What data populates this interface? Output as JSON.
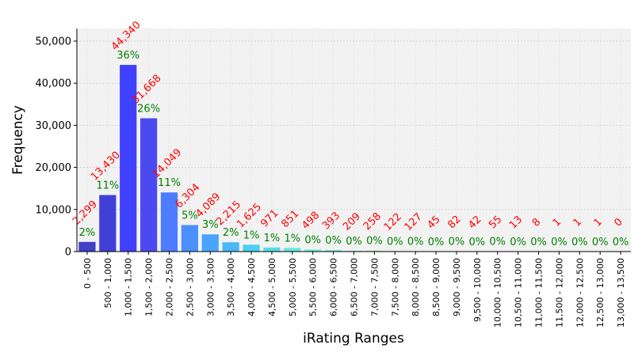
{
  "chart_data": {
    "type": "bar",
    "xlabel": "iRating Ranges",
    "ylabel": "Frequency",
    "ylim": [
      0,
      53000
    ],
    "yticks": [
      0,
      10000,
      20000,
      30000,
      40000,
      50000
    ],
    "ytick_labels": [
      "0",
      "10,000",
      "20,000",
      "30,000",
      "40,000",
      "50,000"
    ],
    "grid": true,
    "categories": [
      "0 - 500",
      "500 - 1,000",
      "1,000 - 1,500",
      "1,500 - 2,000",
      "2,000 - 2,500",
      "2,500 - 3,000",
      "3,000 - 3,500",
      "3,500 - 4,000",
      "4,000 - 4,500",
      "4,500 - 5,000",
      "5,000 - 5,500",
      "5,500 - 6,000",
      "6,000 - 6,500",
      "6,500 - 7,000",
      "7,000 - 7,500",
      "7,500 - 8,000",
      "8,000 - 8,500",
      "8,500 - 9,000",
      "9,000 - 9,500",
      "9,500 - 10,000",
      "10,000 - 10,500",
      "10,500 - 11,000",
      "11,000 - 11,500",
      "11,500 - 12,000",
      "12,000 - 12,500",
      "12,500 - 13,000",
      "13,000 - 13,500"
    ],
    "values": [
      2299,
      13430,
      44340,
      31668,
      14049,
      6304,
      4089,
      2215,
      1625,
      971,
      851,
      498,
      393,
      209,
      258,
      122,
      127,
      45,
      82,
      42,
      55,
      13,
      8,
      1,
      1,
      1,
      0
    ],
    "count_labels": [
      "2,299",
      "13,430",
      "44,340",
      "31,668",
      "14,049",
      "6,304",
      "4,089",
      "2,215",
      "1,625",
      "971",
      "851",
      "498",
      "393",
      "209",
      "258",
      "122",
      "127",
      "45",
      "82",
      "42",
      "55",
      "13",
      "8",
      "1",
      "1",
      "1",
      "0"
    ],
    "percent_labels": [
      "2%",
      "11%",
      "36%",
      "26%",
      "11%",
      "5%",
      "3%",
      "2%",
      "1%",
      "1%",
      "1%",
      "0%",
      "0%",
      "0%",
      "0%",
      "0%",
      "0%",
      "0%",
      "0%",
      "0%",
      "0%",
      "0%",
      "0%",
      "0%",
      "0%",
      "0%",
      "0%"
    ],
    "bar_colors": [
      "#4040c8",
      "#4040d8",
      "#4040ff",
      "#4a4af0",
      "#4c7cff",
      "#4a90ff",
      "#4aa4ff",
      "#4ab8f8",
      "#4ad0f0",
      "#50e0e8",
      "#60e8e0",
      "#70f0d8",
      "#80f0d0",
      "#90f0c8",
      "#a0f0c0",
      "#b0f0b8",
      "#c0f0b0",
      "#c8f0a8",
      "#d0f0a0",
      "#d8f098",
      "#e0f090",
      "#e8f088",
      "#eef080",
      "#f0e878",
      "#f0e070",
      "#f0d868",
      "#f0d060"
    ],
    "count_label_color": "#ff0000",
    "percent_label_color": "#008000",
    "plot_background": "#f2f2f2"
  }
}
